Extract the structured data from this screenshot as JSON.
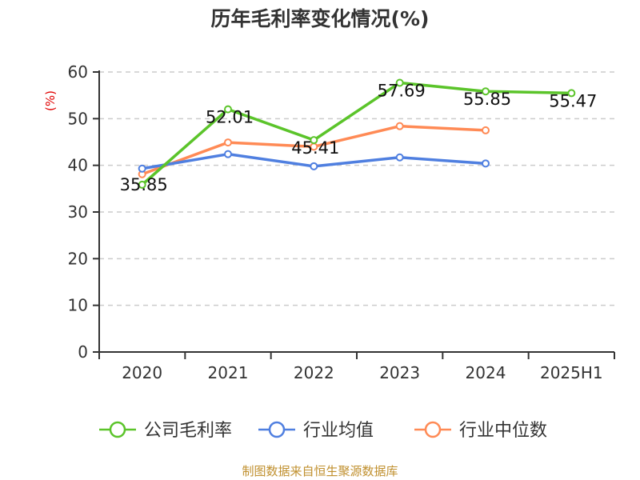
{
  "title": "历年毛利率变化情况(%)",
  "footer": "制图数据来自恒生聚源数据库",
  "colors": {
    "company": "#5bc42a",
    "industry_avg": "#4f7fe0",
    "industry_median": "#ff8a55",
    "axis": "#333333",
    "grid": "#cccccc",
    "ylabel": "#e00000",
    "footer": "#c0902f"
  },
  "chart_data": {
    "type": "line",
    "title": "历年毛利率变化情况(%)",
    "xlabel": "",
    "ylabel": "(%)",
    "ylim": [
      0,
      60
    ],
    "yticks": [
      0,
      10,
      20,
      30,
      40,
      50,
      60
    ],
    "grid": true,
    "legend_position": "bottom",
    "categories": [
      "2020",
      "2021",
      "2022",
      "2023",
      "2024",
      "2025H1"
    ],
    "series": [
      {
        "name": "公司毛利率",
        "color": "#5bc42a",
        "values": [
          35.85,
          52.01,
          45.41,
          57.69,
          55.85,
          55.47
        ],
        "labels": [
          "35.85",
          "52.01",
          "45.41",
          "57.69",
          "55.85",
          "55.47"
        ]
      },
      {
        "name": "行业均值",
        "color": "#4f7fe0",
        "values": [
          39.3,
          42.4,
          39.8,
          41.7,
          40.4,
          null
        ]
      },
      {
        "name": "行业中位数",
        "color": "#ff8a55",
        "values": [
          38.1,
          44.9,
          44.0,
          48.4,
          47.5,
          null
        ]
      }
    ]
  }
}
